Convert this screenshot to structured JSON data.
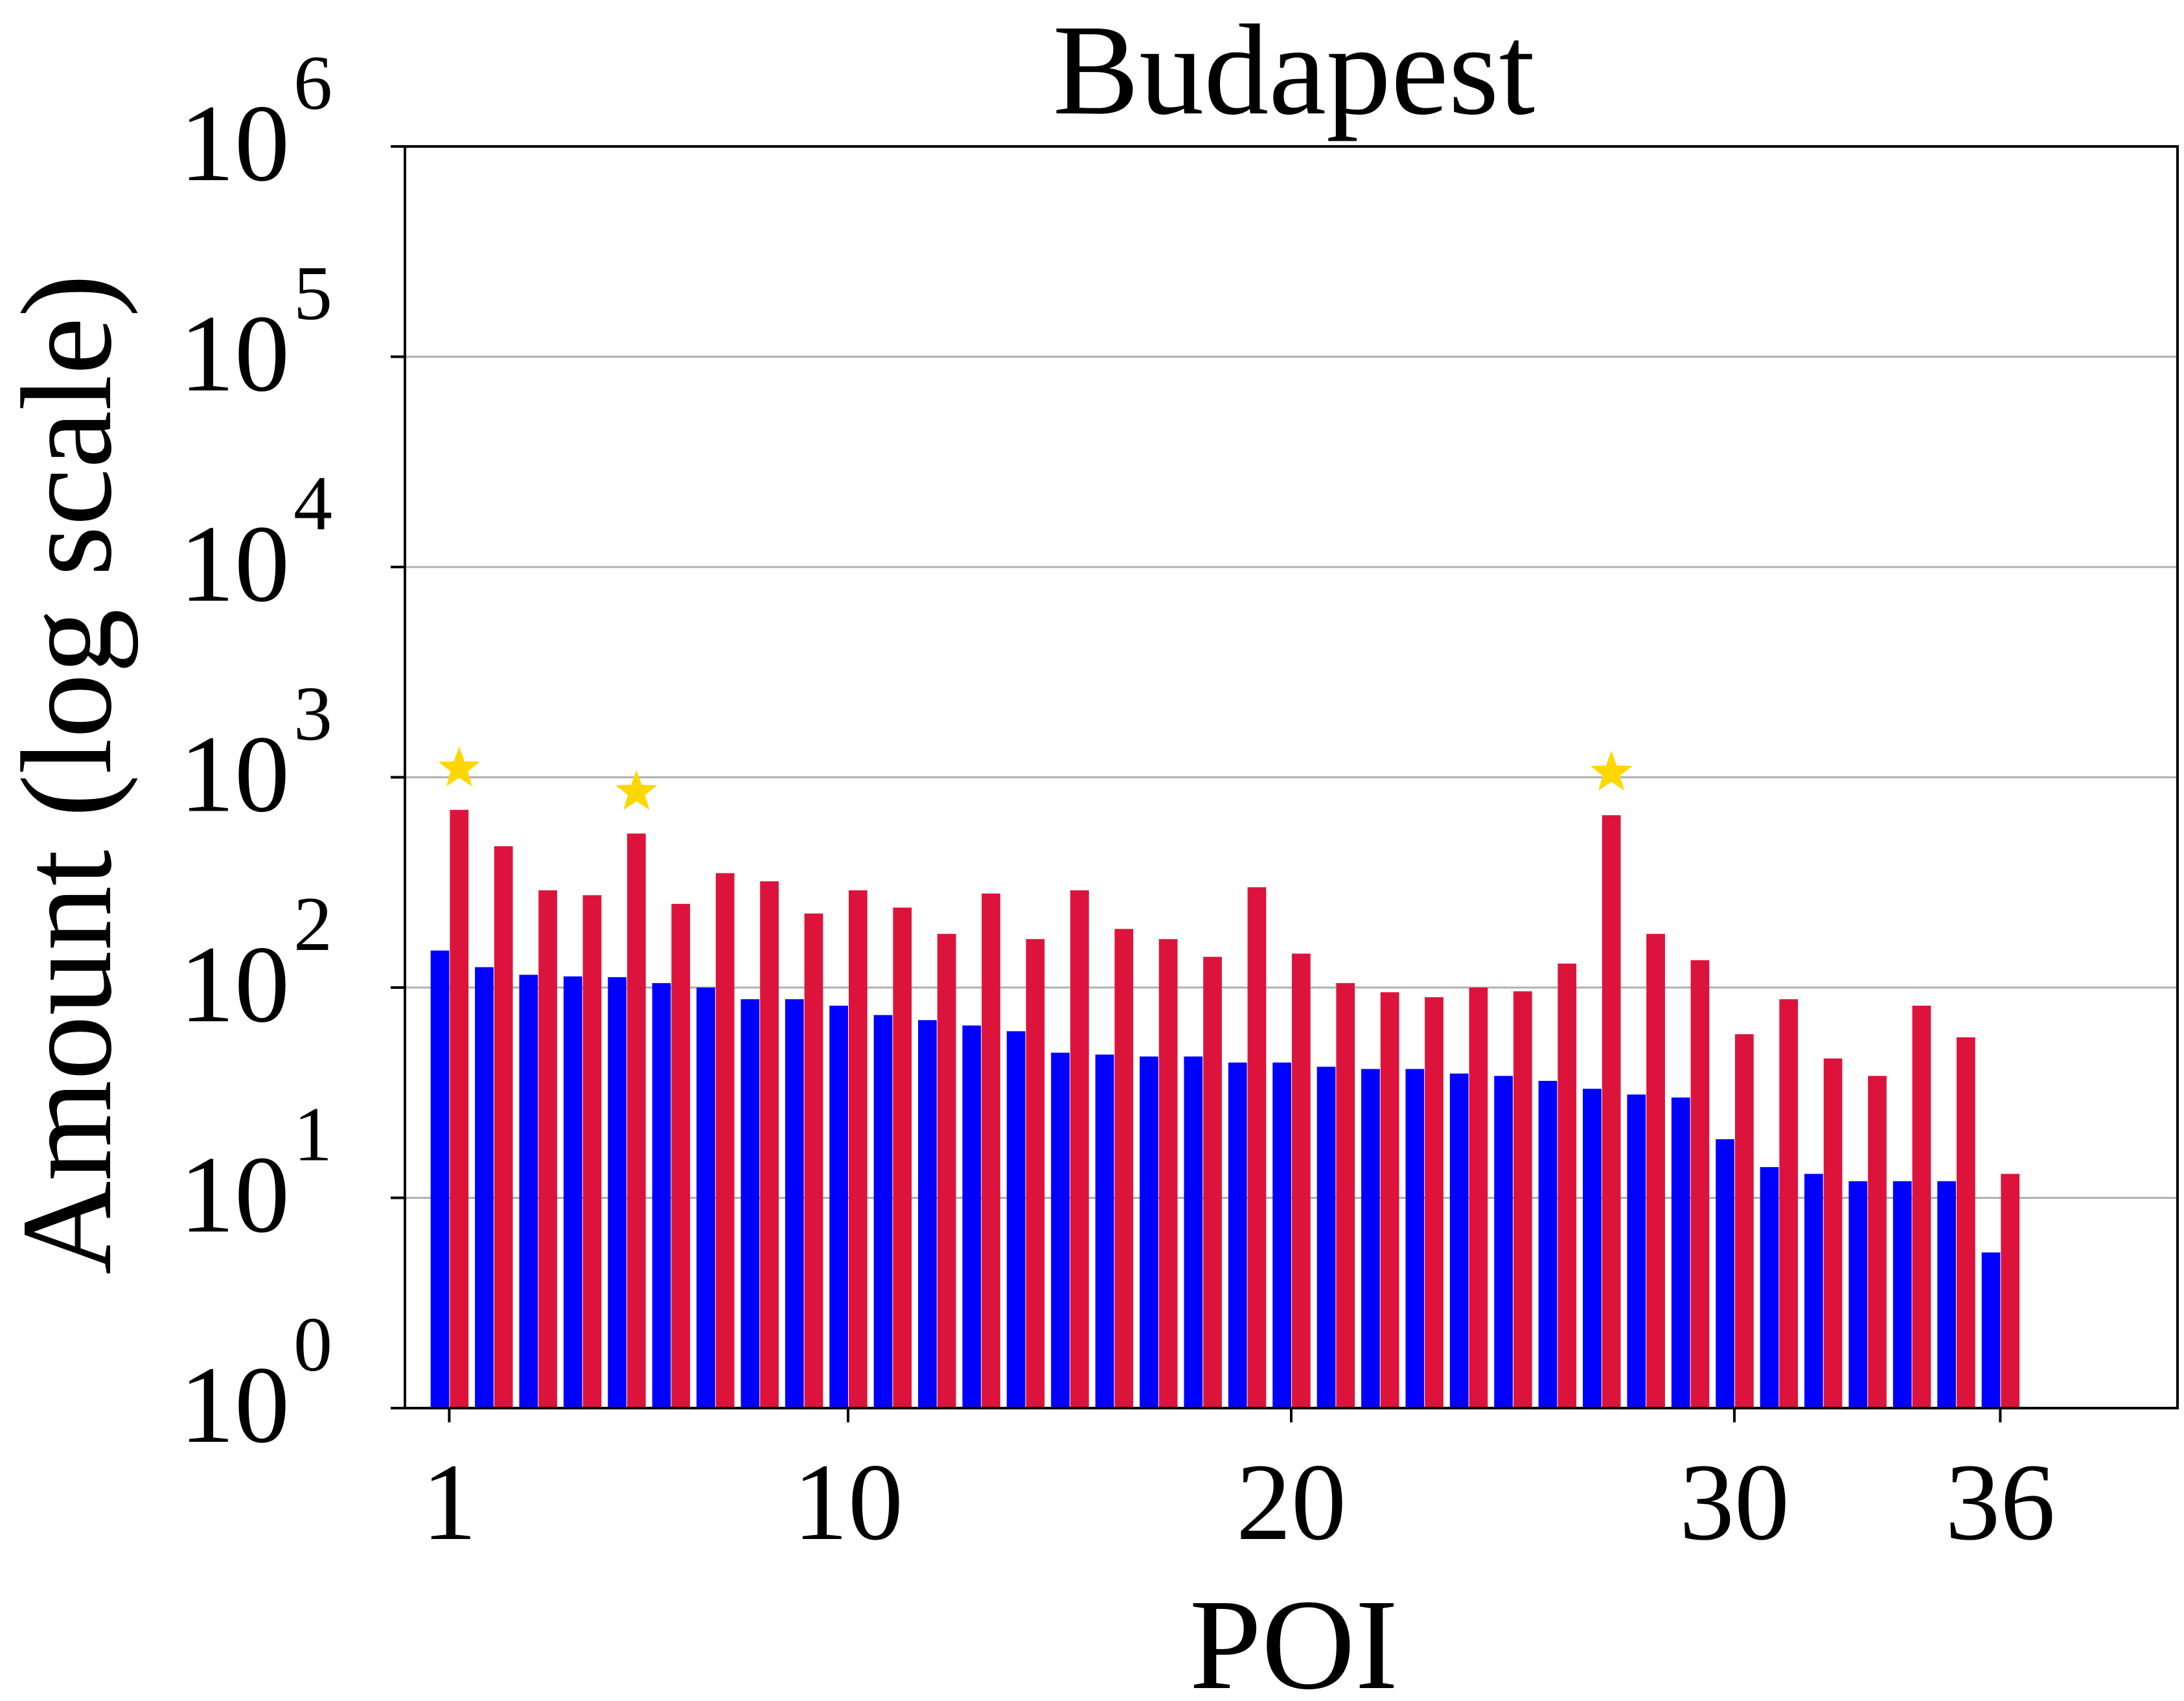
{
  "chart_data": {
    "type": "bar",
    "title": "Budapest",
    "xlabel": "POI",
    "ylabel": "Amount (log scale)",
    "yscale": "log",
    "ylim": [
      1,
      1000000
    ],
    "xlim": [
      -1,
      39
    ],
    "grid": "horizontal",
    "x_tick_labels": [
      "1",
      "10",
      "20",
      "30",
      "36"
    ],
    "y_tick_labels": [
      {
        "base": "10",
        "exp": "0"
      },
      {
        "base": "10",
        "exp": "1"
      },
      {
        "base": "10",
        "exp": "2"
      },
      {
        "base": "10",
        "exp": "3"
      },
      {
        "base": "10",
        "exp": "4"
      },
      {
        "base": "10",
        "exp": "5"
      },
      {
        "base": "10",
        "exp": "6"
      }
    ],
    "categories": [
      1,
      2,
      3,
      4,
      5,
      6,
      7,
      8,
      9,
      10,
      11,
      12,
      13,
      14,
      15,
      16,
      17,
      18,
      19,
      20,
      21,
      22,
      23,
      24,
      25,
      26,
      27,
      28,
      29,
      30,
      31,
      32,
      33,
      34,
      35,
      36
    ],
    "series": [
      {
        "color": "#0000ff",
        "values": [
          150,
          125,
          115,
          113,
          112,
          105,
          100,
          88,
          88,
          82,
          74,
          70,
          66,
          62,
          49,
          48,
          47,
          47,
          44,
          44,
          42,
          41,
          41,
          39,
          38,
          36,
          33,
          31,
          30,
          19,
          14,
          13,
          12,
          12,
          12,
          5.5
        ]
      },
      {
        "color": "#dc143c",
        "values": [
          700,
          470,
          290,
          275,
          540,
          250,
          350,
          320,
          225,
          290,
          240,
          180,
          280,
          170,
          290,
          190,
          170,
          140,
          300,
          145,
          105,
          95,
          90,
          100,
          96,
          130,
          660,
          180,
          135,
          60,
          88,
          46,
          38,
          82,
          58,
          13
        ]
      }
    ],
    "highlights": [
      {
        "category": 1,
        "value": 1100
      },
      {
        "category": 5,
        "value": 850
      },
      {
        "category": 27,
        "value": 1050
      }
    ],
    "highlight_marker": "star",
    "highlight_color": "#ffd700"
  }
}
